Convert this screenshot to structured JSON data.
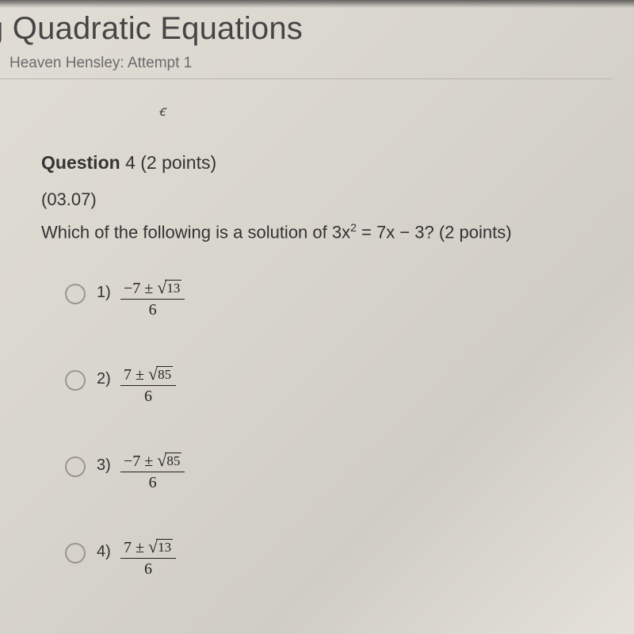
{
  "header": {
    "title": "g Quadratic Equations",
    "attempt_line": "Heaven Hensley: Attempt 1"
  },
  "toolbar": {
    "glyph": "ꞓ"
  },
  "question": {
    "label_prefix": "Question",
    "number": "4",
    "points_text": "(2 points)",
    "section_code": "(03.07)",
    "prompt_html": "Which of the following is a solution of 3x<sup>2</sup> = 7x − 3? (2 points)"
  },
  "options": [
    {
      "n": "1)",
      "numerator_lead": "−7 ± ",
      "radicand": "13",
      "denominator": "6"
    },
    {
      "n": "2)",
      "numerator_lead": "7 ± ",
      "radicand": "85",
      "denominator": "6"
    },
    {
      "n": "3)",
      "numerator_lead": "−7 ± ",
      "radicand": "85",
      "denominator": "6"
    },
    {
      "n": "4)",
      "numerator_lead": "7 ± ",
      "radicand": "13",
      "denominator": "6"
    }
  ],
  "colors": {
    "text": "#303030",
    "muted": "#6a6a6a",
    "radio_border": "#9a9790"
  }
}
